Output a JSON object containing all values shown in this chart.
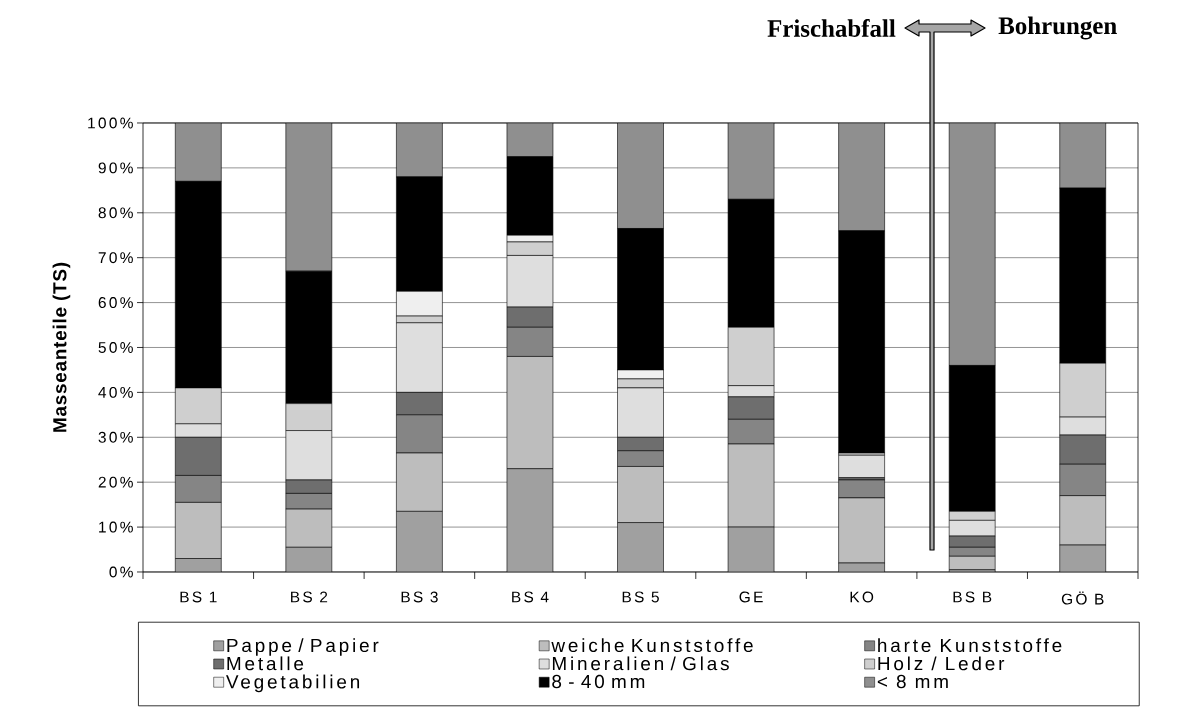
{
  "chart_data": {
    "type": "bar",
    "stacked": true,
    "categories": [
      "BS 1",
      "BS 2",
      "BS 3",
      "BS 4",
      "BS 5",
      "GE",
      "KO",
      "BS B",
      "GÖ B"
    ],
    "series": [
      {
        "name": "Pappe / Papier",
        "color": "#a0a0a0",
        "values": [
          3,
          5.5,
          13.5,
          23,
          11,
          10,
          2,
          0.5,
          6
        ]
      },
      {
        "name": "weiche Kunststoffe",
        "color": "#bdbdbd",
        "values": [
          12.5,
          8.5,
          13,
          25,
          12.5,
          18.5,
          14.5,
          3,
          11
        ]
      },
      {
        "name": "harte Kunststoffe",
        "color": "#858585",
        "values": [
          6,
          3.5,
          8.5,
          6.5,
          3.5,
          5.5,
          4,
          2,
          7
        ]
      },
      {
        "name": "Metalle",
        "color": "#6e6e6e",
        "values": [
          8.5,
          3,
          5,
          4.5,
          3,
          5,
          0.5,
          2.5,
          6.5
        ]
      },
      {
        "name": "Mineralien / Glas",
        "color": "#dedede",
        "values": [
          3,
          11,
          15.5,
          11.5,
          11,
          2.5,
          5,
          3.5,
          4
        ]
      },
      {
        "name": "Holz / Leder",
        "color": "#cfcfcf",
        "values": [
          8,
          6,
          1.5,
          3,
          2,
          13,
          0.5,
          2,
          12
        ]
      },
      {
        "name": "Vegetabilien",
        "color": "#efefef",
        "values": [
          0,
          0,
          5.5,
          1.5,
          2,
          0,
          0,
          0,
          0
        ]
      },
      {
        "name": "8 - 40 mm",
        "color": "#000000",
        "values": [
          46,
          29.5,
          25.5,
          17.5,
          31.5,
          28.5,
          49.5,
          32.5,
          39
        ]
      },
      {
        "name": "< 8 mm",
        "color": "#8f8f8f",
        "values": [
          13,
          33,
          12,
          7.5,
          23.5,
          17,
          24,
          54,
          14.5
        ]
      }
    ],
    "ylabel": "Masseanteile (TS)",
    "ylim": [
      0,
      100
    ],
    "yticks": [
      {
        "value": 0,
        "label": "0%"
      },
      {
        "value": 10,
        "label": "10%"
      },
      {
        "value": 20,
        "label": "20%"
      },
      {
        "value": 30,
        "label": "30%"
      },
      {
        "value": 40,
        "label": "40%"
      },
      {
        "value": 50,
        "label": "50%"
      },
      {
        "value": 60,
        "label": "60%"
      },
      {
        "value": 70,
        "label": "70%"
      },
      {
        "value": 80,
        "label": "80%"
      },
      {
        "value": 90,
        "label": "90%"
      },
      {
        "value": 100,
        "label": "100%"
      }
    ],
    "grid": "y",
    "legend": "bottom",
    "annotations": [
      "Frischabfall",
      "Bohrungen"
    ]
  }
}
